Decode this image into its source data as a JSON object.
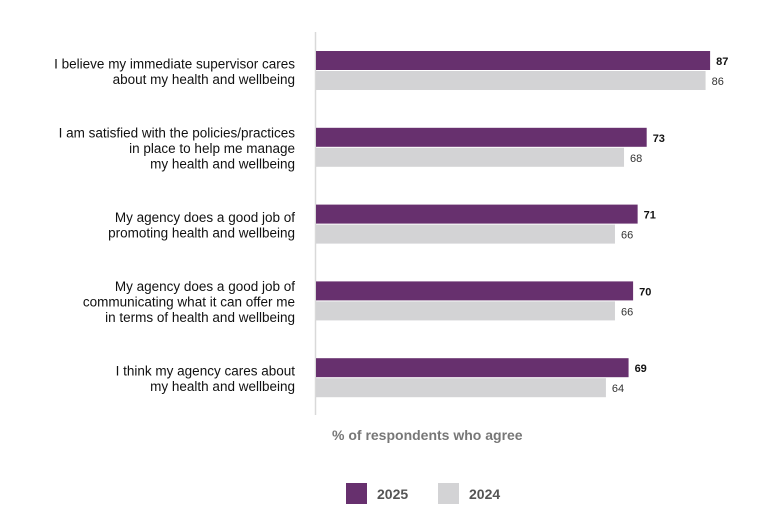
{
  "chart_data": {
    "type": "bar",
    "orientation": "horizontal",
    "categories": [
      [
        "I believe my immediate supervisor cares",
        "about my health and wellbeing"
      ],
      [
        "I am satisfied with the policies/practices",
        "in place to help me manage",
        "my health and wellbeing"
      ],
      [
        "My agency does a good job of",
        "promoting health and wellbeing"
      ],
      [
        "My agency does a good job of",
        "communicating what it can offer me",
        "in terms of health and wellbeing"
      ],
      [
        "I think my agency cares about",
        "my health and wellbeing"
      ]
    ],
    "series": [
      {
        "name": "2025",
        "values": [
          87,
          73,
          71,
          70,
          69
        ],
        "color": "#67306e"
      },
      {
        "name": "2024",
        "values": [
          86,
          68,
          66,
          66,
          64
        ],
        "color": "#d3d3d5"
      }
    ],
    "xlabel": "% of respondents who agree",
    "xlim": [
      0,
      100
    ],
    "grid": false,
    "legend_position": "bottom"
  }
}
